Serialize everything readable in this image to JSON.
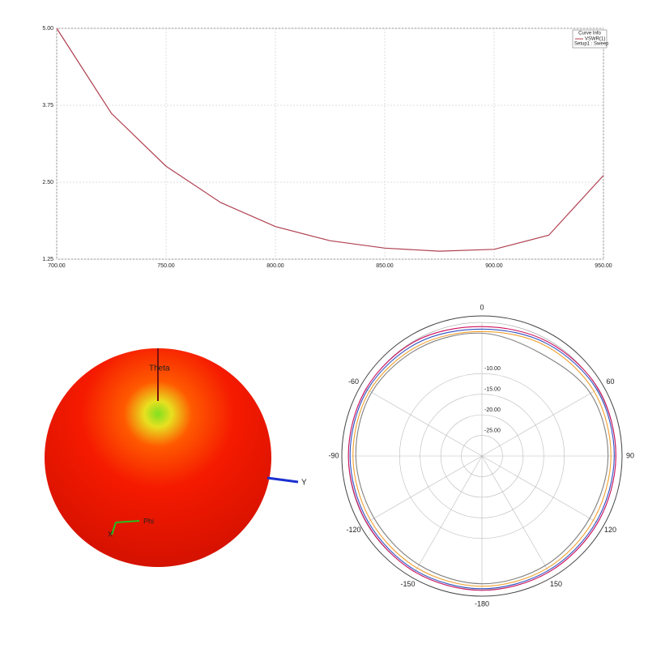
{
  "chart_data": [
    {
      "type": "line",
      "x": [
        700,
        725,
        750,
        775,
        800,
        825,
        850,
        875,
        900,
        925,
        950
      ],
      "series": [
        {
          "name": "VSWR(1)",
          "color": "#b04050",
          "values": [
            5.0,
            3.62,
            2.76,
            2.17,
            1.78,
            1.55,
            1.43,
            1.38,
            1.41,
            1.64,
            2.61
          ]
        }
      ],
      "xlim": [
        700,
        950
      ],
      "xticks": [
        {
          "value": 700,
          "label": "700.00"
        },
        {
          "value": 750,
          "label": "750.00"
        },
        {
          "value": 800,
          "label": "800.00"
        },
        {
          "value": 850,
          "label": "850.00"
        },
        {
          "value": 900,
          "label": "900.00"
        },
        {
          "value": 950,
          "label": "950.00"
        }
      ],
      "ylim": [
        1.25,
        5.0
      ],
      "yticks": [
        {
          "value": 1.25,
          "label": "1.25"
        },
        {
          "value": 2.5,
          "label": "2.50"
        },
        {
          "value": 3.75,
          "label": "3.75"
        },
        {
          "value": 5.0,
          "label": "5.00"
        }
      ],
      "grid": true,
      "legend_title": "Curve Info",
      "legend_subtitle": "Setup1 : Sweep"
    },
    {
      "type": "polar",
      "x": [
        -180,
        -150,
        -120,
        -90,
        -60,
        -30,
        0,
        30,
        60,
        90,
        120,
        150,
        180
      ],
      "series": [
        {
          "color": "#cc1060",
          "values": [
            2.6,
            2.5,
            2.3,
            2.4,
            2.5,
            2.2,
            1.4,
            2.0,
            2.6,
            2.5,
            2.4,
            2.5,
            2.6
          ]
        },
        {
          "color": "#3050c0",
          "values": [
            2.2,
            2.1,
            1.9,
            2.0,
            2.1,
            1.6,
            0.8,
            1.5,
            2.2,
            2.1,
            2.0,
            2.1,
            2.2
          ]
        },
        {
          "color": "#f0a030",
          "values": [
            1.6,
            1.4,
            1.2,
            1.3,
            1.5,
            0.9,
            0.2,
            0.9,
            1.4,
            1.3,
            1.2,
            1.5,
            1.6
          ]
        },
        {
          "color": "#808080",
          "values": [
            1.0,
            0.5,
            0.2,
            0.6,
            0.9,
            0.3,
            -0.2,
            -1.3,
            0.4,
            0.6,
            0.2,
            0.7,
            1.0
          ]
        }
      ],
      "xticks": [
        0,
        60,
        90,
        120,
        150,
        -180,
        -150,
        -120,
        -90,
        -60
      ],
      "rlim": [
        -30,
        4
      ],
      "rticks": [
        {
          "value": -10,
          "label": "-10.00"
        },
        {
          "value": -15,
          "label": "-15.00"
        },
        {
          "value": -20,
          "label": "-20.00"
        },
        {
          "value": -25,
          "label": "-25.00"
        }
      ]
    }
  ],
  "pattern_3d": {
    "axis_labels": [
      "Theta",
      "Phi",
      "Y",
      "X"
    ]
  }
}
